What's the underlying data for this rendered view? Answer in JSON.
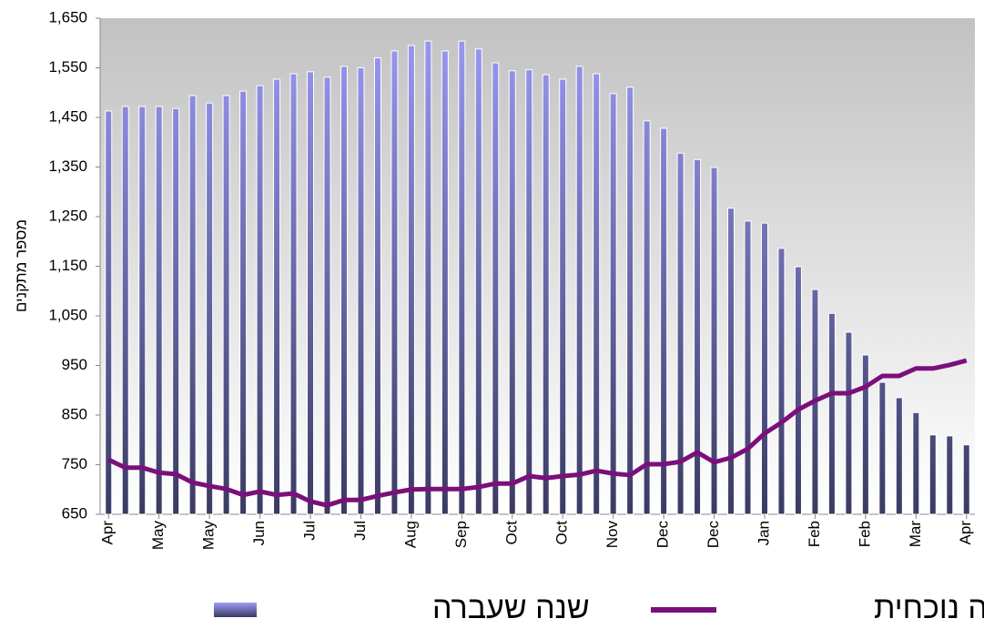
{
  "chart_data": {
    "type": "bar_line",
    "y_axis_label": "מספר מתקנים",
    "categories": [
      "Apr",
      null,
      null,
      "May",
      null,
      null,
      "May",
      null,
      null,
      "Jun",
      null,
      null,
      "Jul",
      null,
      null,
      "Jul",
      null,
      null,
      "Aug",
      null,
      null,
      "Sep",
      null,
      null,
      "Oct",
      null,
      null,
      "Oct",
      null,
      null,
      "Nov",
      null,
      null,
      "Dec",
      null,
      null,
      "Dec",
      null,
      null,
      "Jan",
      null,
      null,
      "Feb",
      null,
      null,
      "Feb",
      null,
      null,
      "Mar",
      null,
      null,
      "Apr"
    ],
    "series": [
      {
        "name": "שנה שעברה",
        "type": "bar",
        "color": "#9c9cf8",
        "color_bottom": "#3a3a62",
        "values": [
          1463,
          1472,
          1472,
          1472,
          1468,
          1494,
          1479,
          1494,
          1503,
          1514,
          1527,
          1538,
          1542,
          1531,
          1553,
          1550,
          1570,
          1584,
          1595,
          1604,
          1584,
          1604,
          1588,
          1560,
          1544,
          1546,
          1536,
          1527,
          1553,
          1538,
          1498,
          1511,
          1443,
          1428,
          1378,
          1365,
          1349,
          1267,
          1241,
          1237,
          1186,
          1149,
          1103,
          1055,
          1017,
          971,
          916,
          885,
          855,
          810,
          808,
          790
        ]
      },
      {
        "name": "שנה נוכחית",
        "type": "line",
        "color": "#7b0f7b",
        "values": [
          760,
          744,
          744,
          734,
          731,
          714,
          707,
          701,
          689,
          696,
          689,
          692,
          676,
          668,
          679,
          679,
          687,
          694,
          700,
          701,
          701,
          701,
          705,
          712,
          712,
          727,
          723,
          727,
          730,
          738,
          732,
          729,
          751,
          751,
          756,
          775,
          755,
          764,
          782,
          813,
          835,
          861,
          879,
          894,
          894,
          907,
          929,
          929,
          944,
          944,
          951,
          960
        ]
      }
    ],
    "ylim": [
      650,
      1650
    ],
    "yticks": [
      {
        "value": 650,
        "label": "650"
      },
      {
        "value": 750,
        "label": "750"
      },
      {
        "value": 850,
        "label": "850"
      },
      {
        "value": 950,
        "label": "950"
      },
      {
        "value": 1050,
        "label": "1,050"
      },
      {
        "value": 1150,
        "label": "1,150"
      },
      {
        "value": 1250,
        "label": "1,250"
      },
      {
        "value": 1350,
        "label": "1,350"
      },
      {
        "value": 1450,
        "label": "1,450"
      },
      {
        "value": 1550,
        "label": "1,550"
      },
      {
        "value": 1650,
        "label": "1,650"
      }
    ],
    "legend": "bottom"
  }
}
